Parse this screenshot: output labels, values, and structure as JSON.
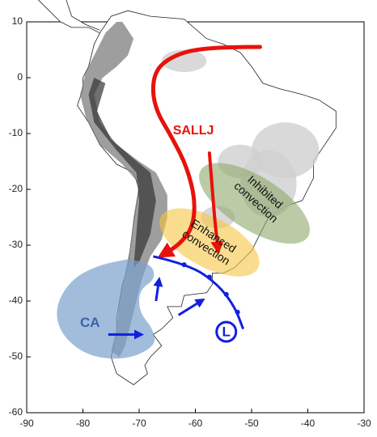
{
  "axes": {
    "xticks": [
      -90,
      -80,
      -70,
      -60,
      -50,
      -40,
      -30
    ],
    "yticks": [
      10,
      0,
      -10,
      -20,
      -30,
      -40,
      -50,
      -60
    ]
  },
  "labels": {
    "jet": "SALLJ",
    "anticyclone": "CA",
    "low": "L",
    "enhanced": [
      "Enhanced",
      "convection"
    ],
    "inhibited": [
      "Inhibited",
      "convection"
    ]
  }
}
